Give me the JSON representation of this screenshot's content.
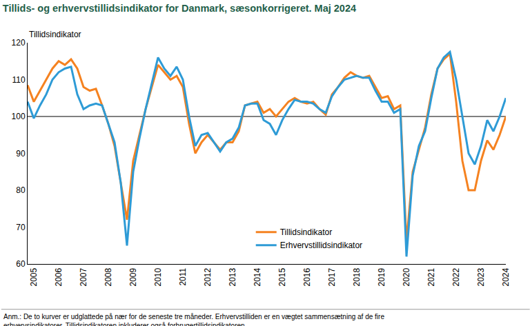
{
  "chart_data": {
    "type": "line",
    "title": "Tillids- og erhvervstillidsindikator for Danmark, sæsonkorrigeret. Maj 2024",
    "y_label": "Tillidsindikator",
    "note": [
      "Anm.: De to kurver er udglattede på nær for de seneste tre måneder. Erhvervstilliden er en vægtet sammensætning af de fire",
      "erhvervsindikatorer. Tillidsindikatoren inkluderer også forbrugertillidsindikatoren."
    ],
    "categories": [
      null,
      "2005",
      null,
      null,
      null,
      "2006",
      null,
      null,
      null,
      "2007",
      null,
      null,
      null,
      "2008",
      null,
      null,
      null,
      "2009",
      null,
      null,
      null,
      "2010",
      null,
      null,
      null,
      "2011",
      null,
      null,
      null,
      "2012",
      null,
      null,
      null,
      "2013",
      null,
      null,
      null,
      "2014",
      null,
      null,
      null,
      "2015",
      null,
      null,
      null,
      "2016",
      null,
      null,
      null,
      "2017",
      null,
      null,
      null,
      "2018",
      null,
      null,
      null,
      "2019",
      null,
      null,
      null,
      "2020",
      null,
      null,
      null,
      "2021",
      null,
      null,
      null,
      "2022",
      null,
      null,
      null,
      "2023",
      null,
      null,
      null,
      "2024"
    ],
    "series": [
      {
        "name": "Tillidsindikator",
        "color": "#f58220",
        "values": [
          108.5,
          104,
          107,
          110,
          113,
          115,
          114,
          115.5,
          113,
          108,
          107,
          107.5,
          103,
          98,
          92,
          82,
          72,
          88,
          95,
          102,
          108,
          114,
          112,
          110,
          111,
          108,
          98,
          90,
          93,
          95,
          93,
          91,
          93,
          93,
          96,
          103,
          103.5,
          104,
          101,
          102,
          100,
          102,
          104,
          105,
          104,
          103.5,
          104,
          102,
          100.5,
          106,
          108,
          110.5,
          112,
          111,
          110.5,
          111,
          108,
          105,
          105.5,
          102,
          103,
          66,
          85,
          91,
          97,
          106,
          113,
          115.5,
          117,
          104,
          88,
          80,
          80,
          88,
          93.5,
          91,
          95,
          100
        ]
      },
      {
        "name": "Erhvervstillidsindikator",
        "color": "#2e9bd6",
        "values": [
          104,
          99.5,
          103,
          106,
          110,
          112,
          113,
          113.5,
          106,
          102,
          103,
          103.5,
          103,
          98,
          93,
          82,
          65,
          85,
          94,
          102,
          109,
          116,
          113,
          111,
          113.5,
          110,
          100,
          92,
          95,
          95.5,
          93,
          90.5,
          93,
          94,
          97,
          103,
          103.5,
          103.5,
          99,
          98,
          95,
          99,
          102,
          104.5,
          104,
          104,
          103.5,
          102,
          101,
          105.5,
          108,
          110,
          110.5,
          111,
          110.5,
          110.5,
          107,
          104,
          104,
          101,
          102,
          62,
          84,
          92,
          96,
          105,
          113,
          116,
          117.5,
          110,
          100,
          90,
          87,
          92,
          99,
          96,
          100,
          105
        ]
      }
    ],
    "reference_line": 100,
    "ylim": [
      60,
      120
    ],
    "yticks": [
      60,
      70,
      80,
      90,
      100,
      110,
      120
    ],
    "grid": false,
    "legend": "lower center"
  }
}
